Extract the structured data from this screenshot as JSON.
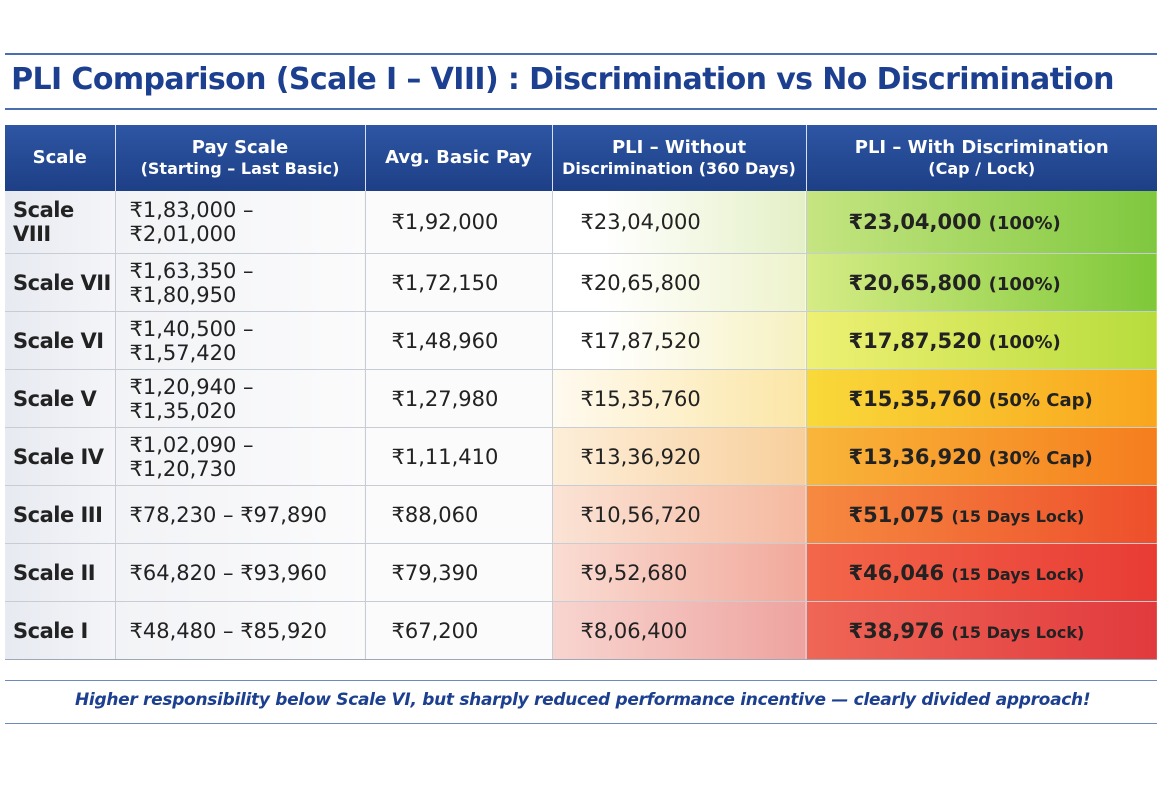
{
  "title": "PLI Comparison (Scale I – VIII) : Discrimination vs No Discrimination",
  "headers": {
    "scale": "Scale",
    "pay_scale": "Pay Scale",
    "pay_scale_sub": "(Starting – Last Basic)",
    "avg_basic": "Avg. Basic Pay",
    "pli_without": "PLI – Without",
    "pli_without_sub": "Discrimination (360 Days)",
    "pli_with": "PLI – With Discrimination",
    "pli_with_sub": "(Cap / Lock)"
  },
  "rows": [
    {
      "scale": "Scale VIII",
      "pay_scale": "₹1,83,000 – ₹2,01,000",
      "avg_basic": "₹1,92,000",
      "pli_without": "₹23,04,000",
      "pli_with": "₹23,04,000",
      "pli_with_note": "(100%)"
    },
    {
      "scale": "Scale VII",
      "pay_scale": "₹1,63,350 – ₹1,80,950",
      "avg_basic": "₹1,72,150",
      "pli_without": "₹20,65,800",
      "pli_with": "₹20,65,800",
      "pli_with_note": "(100%)"
    },
    {
      "scale": "Scale VI",
      "pay_scale": "₹1,40,500 – ₹1,57,420",
      "avg_basic": "₹1,48,960",
      "pli_without": "₹17,87,520",
      "pli_with": "₹17,87,520",
      "pli_with_note": "(100%)"
    },
    {
      "scale": "Scale V",
      "pay_scale": "₹1,20,940 – ₹1,35,020",
      "avg_basic": "₹1,27,980",
      "pli_without": "₹15,35,760",
      "pli_with": "₹15,35,760",
      "pli_with_note": "(50% Cap)"
    },
    {
      "scale": "Scale IV",
      "pay_scale": "₹1,02,090 – ₹1,20,730",
      "avg_basic": "₹1,11,410",
      "pli_without": "₹13,36,920",
      "pli_with": "₹13,36,920",
      "pli_with_note": "(30% Cap)"
    },
    {
      "scale": "Scale III",
      "pay_scale": "₹78,230 – ₹97,890",
      "avg_basic": "₹88,060",
      "pli_without": "₹10,56,720",
      "pli_with": "₹51,075",
      "pli_with_note": "(15 Days Lock)"
    },
    {
      "scale": "Scale II",
      "pay_scale": "₹64,820 – ₹93,960",
      "avg_basic": "₹79,390",
      "pli_without": "₹9,52,680",
      "pli_with": "₹46,046",
      "pli_with_note": "(15 Days Lock)"
    },
    {
      "scale": "Scale I",
      "pay_scale": "₹48,480 – ₹85,920",
      "avg_basic": "₹67,200",
      "pli_without": "₹8,06,400",
      "pli_with": "₹38,976",
      "pli_with_note": "(15 Days Lock)"
    }
  ],
  "footer": "Higher responsibility below Scale VI, but sharply reduced performance incentive — clearly divided approach!",
  "chart_data": {
    "type": "table",
    "title": "PLI Comparison (Scale I – VIII) : Discrimination vs No Discrimination",
    "columns": [
      "Scale",
      "Pay Scale (Starting – Last Basic)",
      "Avg. Basic Pay",
      "PLI – Without Discrimination (360 Days)",
      "PLI – With Discrimination (Cap / Lock)"
    ],
    "categories": [
      "Scale VIII",
      "Scale VII",
      "Scale VI",
      "Scale V",
      "Scale IV",
      "Scale III",
      "Scale II",
      "Scale I"
    ],
    "series": [
      {
        "name": "Avg. Basic Pay",
        "values": [
          192000,
          172150,
          148960,
          127980,
          111410,
          88060,
          79390,
          67200
        ]
      },
      {
        "name": "PLI – Without Discrimination (360 Days)",
        "values": [
          2304000,
          2065800,
          1787520,
          1535760,
          1336920,
          1056720,
          952680,
          806400
        ]
      },
      {
        "name": "PLI – With Discrimination (Cap / Lock)",
        "values": [
          2304000,
          2065800,
          1787520,
          1535760,
          1336920,
          51075,
          46046,
          38976
        ]
      }
    ]
  },
  "colors": {
    "header_bg": "#1d3f86",
    "title": "#1c3f8f",
    "green": "#7fc83e",
    "yellow": "#f9d93a",
    "orange": "#f57d1e",
    "red": "#e13a3e"
  }
}
